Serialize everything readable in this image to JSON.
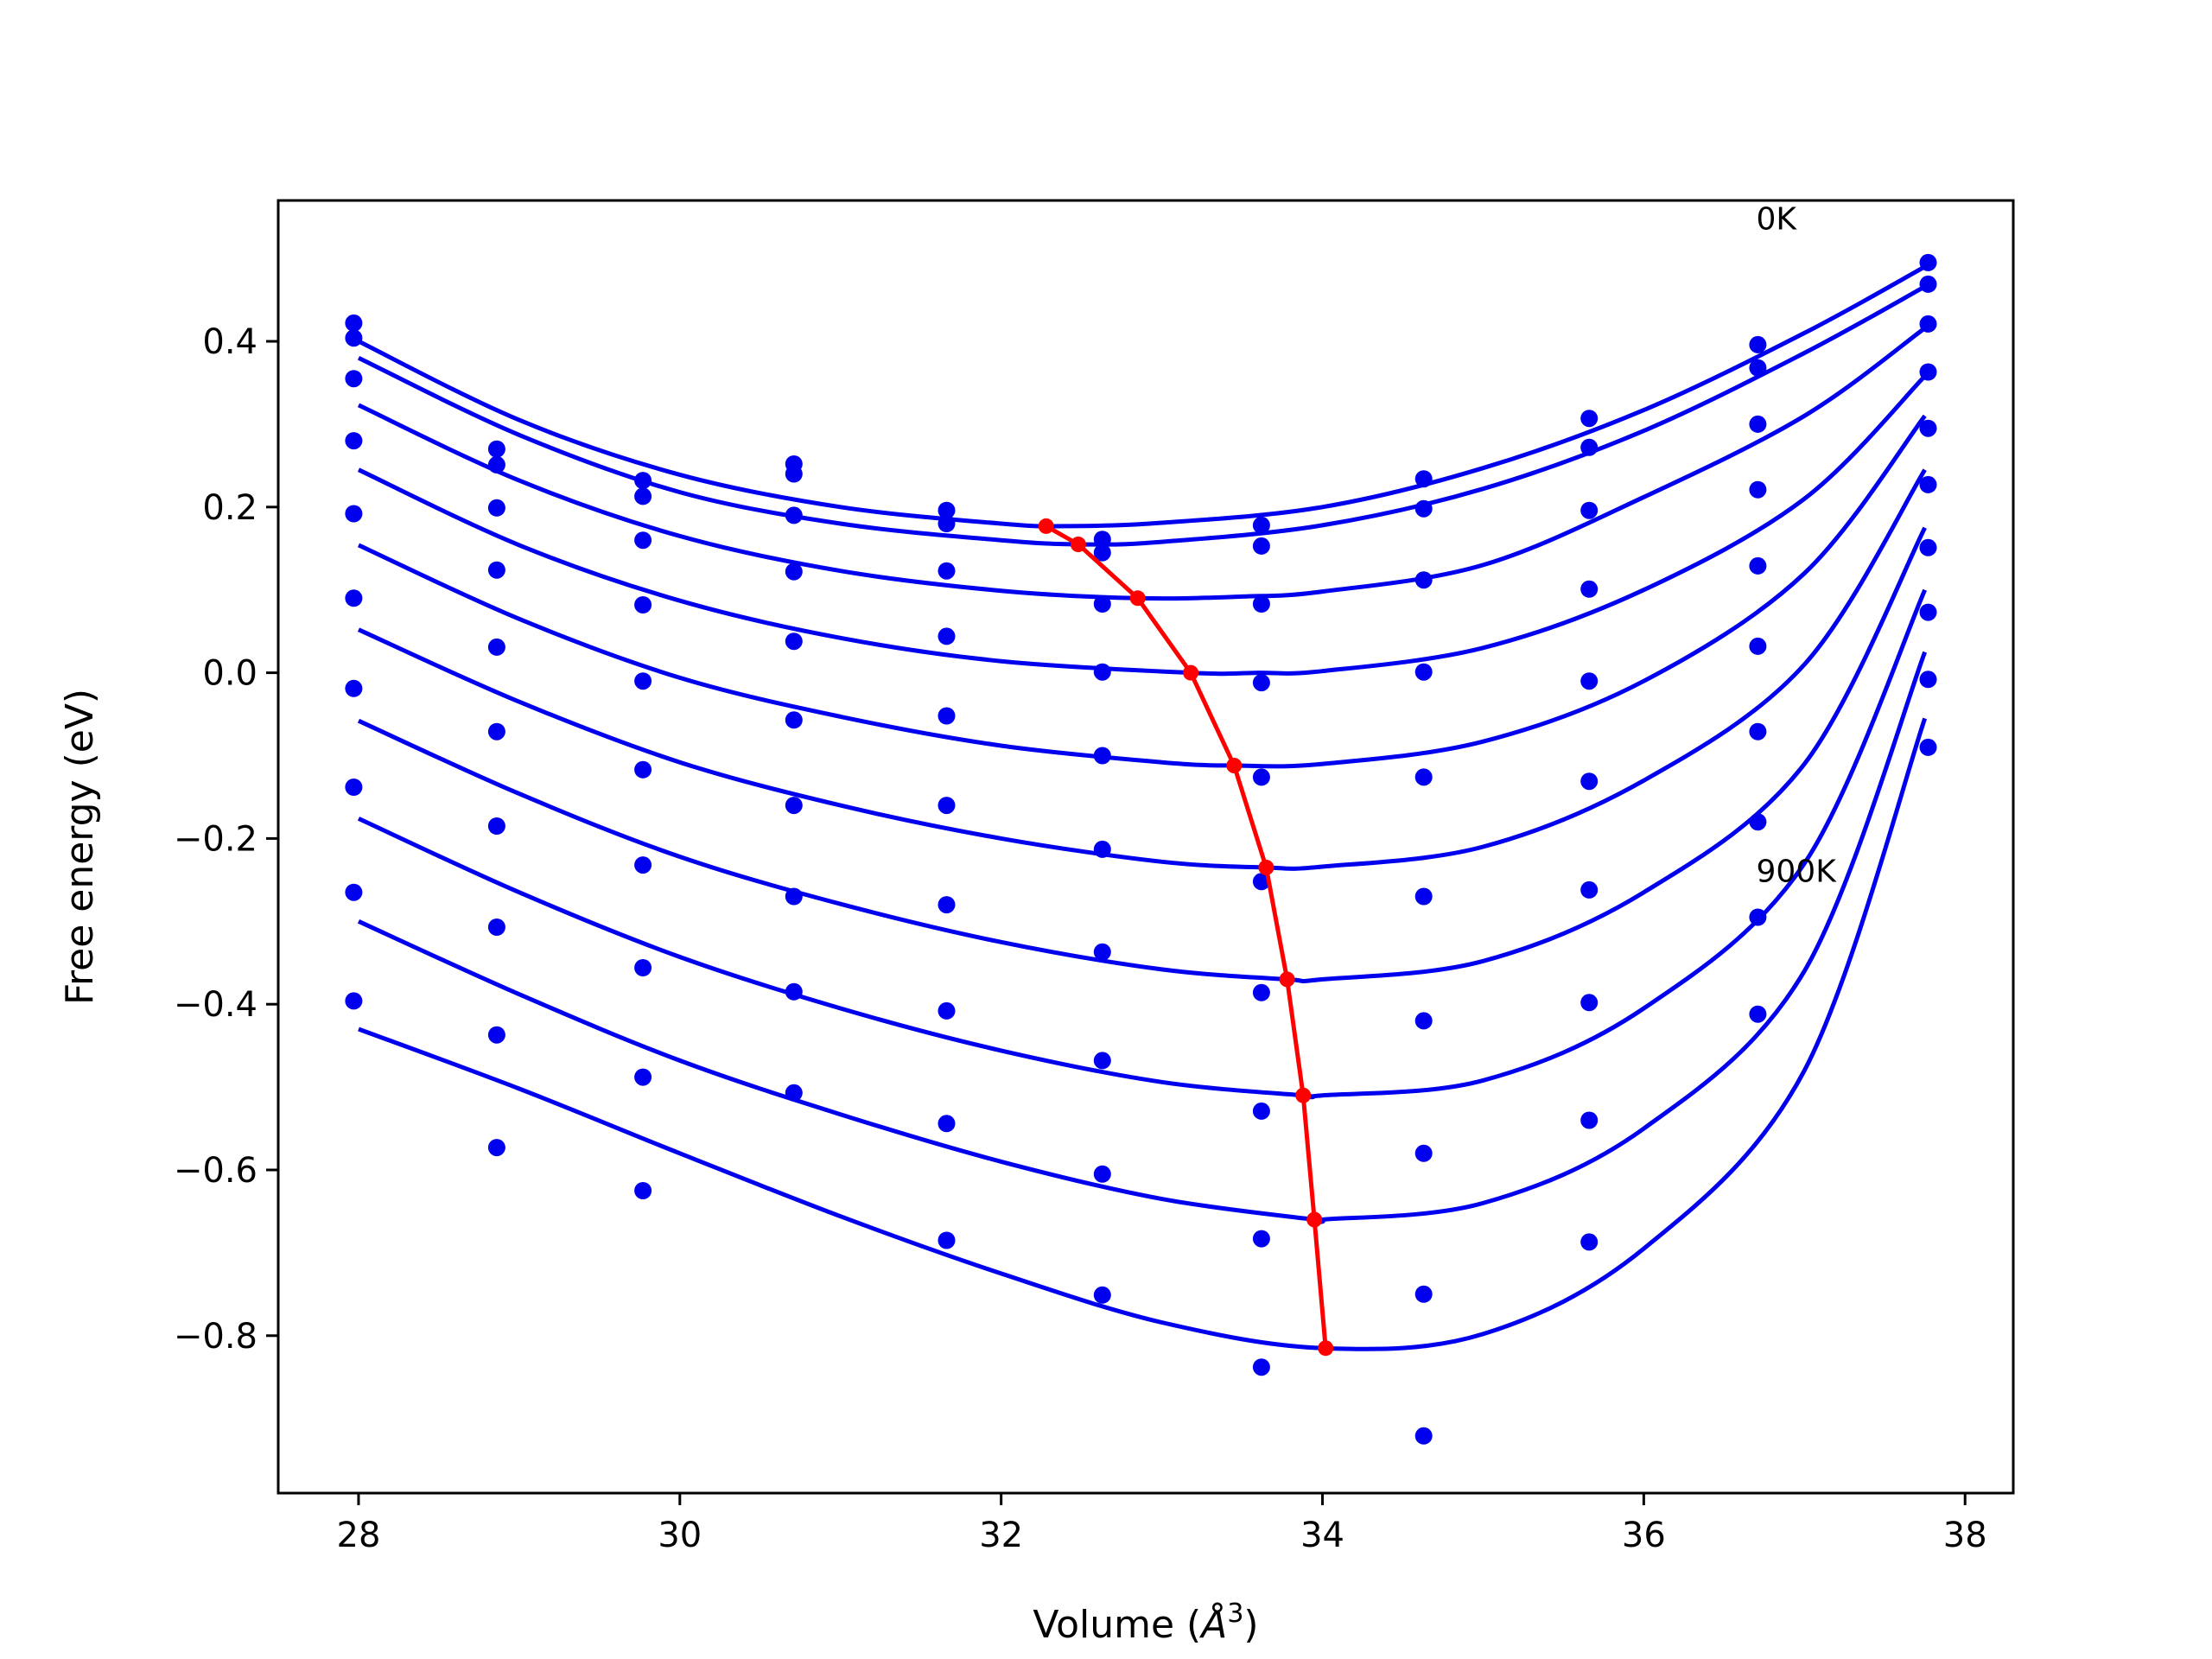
{
  "chart_data": {
    "type": "line",
    "title": "",
    "xlabel_prefix": "Volume (",
    "xlabel_symbol": "Å",
    "xlabel_exp": "3",
    "xlabel_suffix": ")",
    "ylabel": "Free energy (eV)",
    "xlim": [
      27.5,
      38.3
    ],
    "ylim": [
      -0.99,
      0.57
    ],
    "xticks": [
      28,
      30,
      32,
      34,
      36,
      38
    ],
    "xtick_labels": [
      "28",
      "30",
      "32",
      "34",
      "36",
      "38"
    ],
    "yticks": [
      -0.8,
      -0.6,
      -0.4,
      -0.2,
      0.0,
      0.2,
      0.4
    ],
    "ytick_labels": [
      "−0.8",
      "−0.6",
      "−0.4",
      "−0.2",
      "0.0",
      "0.2",
      "0.4"
    ],
    "grid": false,
    "colors": {
      "points": "#0000ee",
      "curves": "#0000ee",
      "minima": "#ff0000"
    },
    "annotations": [
      {
        "text": "0K",
        "x": 36.7,
        "y": 0.535
      },
      {
        "text": "900K",
        "x": 36.7,
        "y": -0.252
      }
    ],
    "volumes": [
      27.97,
      28.86,
      29.77,
      30.71,
      31.66,
      32.63,
      33.62,
      34.63,
      35.66,
      36.71,
      37.77
    ],
    "scatter_series": [
      [
        0.422,
        0.27,
        0.232,
        0.252,
        0.196,
        0.161,
        0.178,
        0.234,
        0.307,
        0.396,
        0.495
      ],
      [
        0.404,
        0.251,
        0.213,
        0.24,
        0.18,
        0.145,
        0.153,
        0.198,
        0.272,
        0.368,
        0.469
      ],
      [
        0.355,
        0.199,
        0.16,
        0.19,
        0.123,
        0.083,
        0.083,
        0.112,
        0.196,
        0.3,
        0.421
      ],
      [
        0.28,
        0.124,
        0.082,
        0.122,
        0.044,
        0.001,
        -0.012,
        0.001,
        0.101,
        0.221,
        0.363
      ],
      [
        0.192,
        0.031,
        -0.01,
        0.038,
        -0.052,
        -0.1,
        -0.126,
        -0.126,
        -0.01,
        0.129,
        0.295
      ],
      [
        0.09,
        -0.071,
        -0.117,
        -0.057,
        -0.16,
        -0.213,
        -0.252,
        -0.27,
        -0.131,
        0.032,
        0.227
      ],
      [
        -0.019,
        -0.185,
        -0.232,
        -0.16,
        -0.28,
        -0.337,
        -0.386,
        -0.42,
        -0.262,
        -0.071,
        0.151
      ],
      [
        -0.138,
        -0.307,
        -0.356,
        -0.27,
        -0.408,
        -0.468,
        -0.529,
        -0.58,
        -0.398,
        -0.18,
        0.073
      ],
      [
        -0.265,
        -0.437,
        -0.488,
        -0.385,
        -0.544,
        -0.605,
        -0.683,
        -0.75,
        -0.54,
        -0.295,
        -0.008
      ],
      [
        -0.396,
        -0.573,
        -0.625,
        -0.507,
        -0.685,
        -0.751,
        -0.838,
        -0.921,
        -0.687,
        -0.412,
        -0.09
      ]
    ],
    "fit_curves": [
      {
        "x": [
          28.0,
          29.0,
          30.0,
          31.0,
          32.0,
          32.4,
          33.0,
          34.0,
          35.0,
          36.0,
          37.0,
          37.75
        ],
        "y": [
          0.4,
          0.305,
          0.239,
          0.2,
          0.18,
          0.177,
          0.181,
          0.2,
          0.247,
          0.317,
          0.41,
          0.49
        ]
      },
      {
        "x": [
          28.0,
          29.0,
          30.0,
          31.0,
          32.0,
          32.5,
          33.0,
          34.0,
          35.0,
          36.0,
          37.0,
          37.75
        ],
        "y": [
          0.38,
          0.287,
          0.218,
          0.18,
          0.16,
          0.155,
          0.158,
          0.178,
          0.222,
          0.292,
          0.386,
          0.466
        ]
      },
      {
        "x": [
          28.0,
          29.0,
          30.0,
          31.0,
          32.0,
          32.85,
          33.5,
          34.0,
          35.0,
          36.0,
          37.0,
          37.75
        ],
        "y": [
          0.323,
          0.232,
          0.165,
          0.123,
          0.099,
          0.09,
          0.092,
          0.098,
          0.13,
          0.212,
          0.31,
          0.416
        ]
      },
      {
        "x": [
          28.0,
          29.0,
          30.0,
          31.0,
          32.0,
          33.18,
          33.6,
          34.0,
          35.0,
          36.0,
          37.0,
          37.75
        ],
        "y": [
          0.245,
          0.154,
          0.087,
          0.042,
          0.014,
          0.0,
          0.0,
          0.002,
          0.03,
          0.1,
          0.21,
          0.358
        ]
      },
      {
        "x": [
          28.0,
          29.0,
          30.0,
          31.0,
          32.0,
          33.0,
          33.45,
          34.0,
          35.0,
          36.0,
          37.0,
          37.75
        ],
        "y": [
          0.154,
          0.065,
          -0.006,
          -0.053,
          -0.088,
          -0.108,
          -0.112,
          -0.11,
          -0.083,
          -0.01,
          0.12,
          0.31
        ]
      },
      {
        "x": [
          28.0,
          29.0,
          30.0,
          31.0,
          32.0,
          33.0,
          33.65,
          34.0,
          35.0,
          36.0,
          37.0,
          37.75
        ],
        "y": [
          0.052,
          -0.035,
          -0.108,
          -0.16,
          -0.2,
          -0.228,
          -0.235,
          -0.234,
          -0.21,
          -0.13,
          0.01,
          0.245
        ]
      },
      {
        "x": [
          28.0,
          29.0,
          30.0,
          31.0,
          32.0,
          33.0,
          33.78,
          34.0,
          35.0,
          36.0,
          37.0,
          37.75
        ],
        "y": [
          -0.058,
          -0.146,
          -0.222,
          -0.279,
          -0.325,
          -0.358,
          -0.37,
          -0.37,
          -0.348,
          -0.265,
          -0.11,
          0.175
        ]
      },
      {
        "x": [
          28.0,
          29.0,
          30.0,
          31.0,
          32.0,
          33.0,
          33.88,
          34.0,
          35.0,
          36.0,
          37.0,
          37.75
        ],
        "y": [
          -0.176,
          -0.265,
          -0.343,
          -0.405,
          -0.456,
          -0.494,
          -0.51,
          -0.51,
          -0.492,
          -0.405,
          -0.23,
          0.1
        ]
      },
      {
        "x": [
          28.0,
          29.0,
          30.0,
          31.0,
          32.0,
          33.0,
          33.95,
          34.0,
          35.0,
          36.0,
          37.0,
          37.75
        ],
        "y": [
          -0.3,
          -0.388,
          -0.468,
          -0.533,
          -0.59,
          -0.635,
          -0.66,
          -0.66,
          -0.64,
          -0.55,
          -0.36,
          0.025
        ]
      },
      {
        "x": [
          28.0,
          29.0,
          30.0,
          31.0,
          32.0,
          33.0,
          34.0,
          35.0,
          36.0,
          37.0,
          37.75
        ],
        "y": [
          -0.43,
          -0.502,
          -0.58,
          -0.656,
          -0.725,
          -0.784,
          -0.815,
          -0.798,
          -0.695,
          -0.48,
          -0.055
        ]
      }
    ],
    "minima_line": {
      "x": [
        32.28,
        32.48,
        32.85,
        33.18,
        33.45,
        33.65,
        33.78,
        33.88,
        33.95,
        34.02
      ],
      "y": [
        0.177,
        0.155,
        0.09,
        0.0,
        -0.112,
        -0.235,
        -0.37,
        -0.51,
        -0.66,
        -0.815
      ]
    }
  }
}
